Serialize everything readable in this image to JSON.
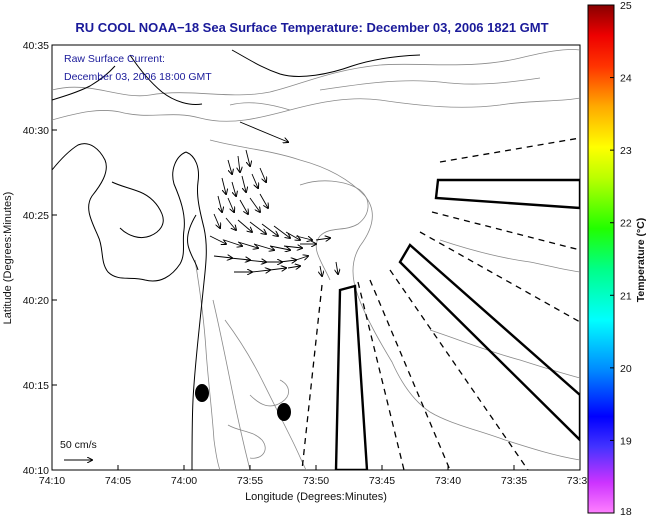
{
  "title": "RU COOL  NOAA−18  Sea Surface Temperature:  December 03, 2006 1821 GMT",
  "annotation": {
    "line1": "Raw Surface Current:",
    "line2": "December 03, 2006 18:00 GMT"
  },
  "scale_label": "50 cm/s",
  "axes": {
    "xlabel": "Longitude (Degrees:Minutes)",
    "ylabel": "Latitude (Degrees:Minutes)",
    "x_ticks": [
      "74:10",
      "74:05",
      "74:00",
      "73:55",
      "73:50",
      "73:45",
      "73:40",
      "73:35",
      "73:3"
    ],
    "y_ticks": [
      "40:35",
      "40:30",
      "40:25",
      "40:20",
      "40:15",
      "40:10"
    ]
  },
  "colorbar": {
    "label": "Temperature (°C)",
    "ticks": [
      "25",
      "24",
      "23",
      "22",
      "21",
      "20",
      "19",
      "18"
    ],
    "range": [
      18,
      25
    ],
    "colors": [
      "#ff00ff",
      "#0000ff",
      "#00ffff",
      "#00ff00",
      "#ffff00",
      "#ff8000",
      "#ff0000",
      "#800000"
    ]
  },
  "map": {
    "land_color": "#ffffff",
    "contour_color": "#8a8a8a",
    "coast_color": "#000000",
    "vector_color": "#000000"
  }
}
